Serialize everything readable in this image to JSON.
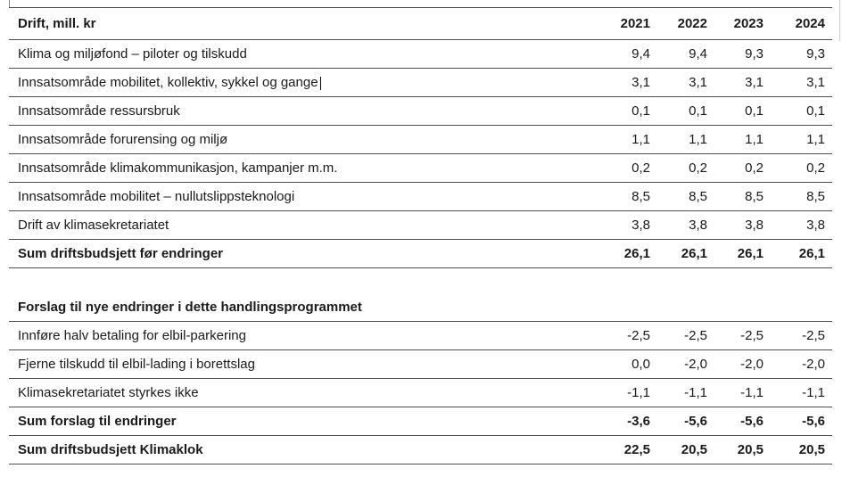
{
  "table": {
    "title": "Drift, mill. kr",
    "years": [
      "2021",
      "2022",
      "2023",
      "2024"
    ],
    "section1_rows": [
      {
        "label": "Klima og miljøfond – piloter og tilskudd",
        "values": [
          "9,4",
          "9,4",
          "9,3",
          "9,3"
        ],
        "bold": false,
        "caret": false
      },
      {
        "label": "Innsatsområde mobilitet, kollektiv, sykkel og gange",
        "values": [
          "3,1",
          "3,1",
          "3,1",
          "3,1"
        ],
        "bold": false,
        "caret": true
      },
      {
        "label": "Innsatsområde ressursbruk",
        "values": [
          "0,1",
          "0,1",
          "0,1",
          "0,1"
        ],
        "bold": false,
        "caret": false
      },
      {
        "label": "Innsatsområde forurensing og miljø",
        "values": [
          "1,1",
          "1,1",
          "1,1",
          "1,1"
        ],
        "bold": false,
        "caret": false
      },
      {
        "label": "Innsatsområde klimakommunikasjon, kampanjer m.m.",
        "values": [
          "0,2",
          "0,2",
          "0,2",
          "0,2"
        ],
        "bold": false,
        "caret": false
      },
      {
        "label": "Innsatsområde mobilitet – nullutslippsteknologi",
        "values": [
          "8,5",
          "8,5",
          "8,5",
          "8,5"
        ],
        "bold": false,
        "caret": false
      },
      {
        "label": "Drift av klimasekretariatet",
        "values": [
          "3,8",
          "3,8",
          "3,8",
          "3,8"
        ],
        "bold": false,
        "caret": false
      },
      {
        "label": "Sum driftsbudsjett før endringer",
        "values": [
          "26,1",
          "26,1",
          "26,1",
          "26,1"
        ],
        "bold": true,
        "caret": false
      }
    ],
    "section2_rows": [
      {
        "label": "Forslag til nye endringer i dette handlingsprogrammet",
        "values": [
          "",
          "",
          "",
          ""
        ],
        "bold": true,
        "caret": false
      },
      {
        "label": "Innføre halv betaling for elbil-parkering",
        "values": [
          "-2,5",
          "-2,5",
          "-2,5",
          "-2,5"
        ],
        "bold": false,
        "caret": false
      },
      {
        "label": "Fjerne tilskudd til elbil-lading i borettslag",
        "values": [
          "0,0",
          "-2,0",
          "-2,0",
          "-2,0"
        ],
        "bold": false,
        "caret": false
      },
      {
        "label": "Klimasekretariatet styrkes ikke",
        "values": [
          "-1,1",
          "-1,1",
          "-1,1",
          "-1,1"
        ],
        "bold": false,
        "caret": false
      },
      {
        "label": "Sum forslag til endringer",
        "values": [
          "-3,6",
          "-5,6",
          "-5,6",
          "-5,6"
        ],
        "bold": true,
        "caret": false
      },
      {
        "label": "Sum driftsbudsjett Klimaklok",
        "values": [
          "22,5",
          "20,5",
          "20,5",
          "20,5"
        ],
        "bold": true,
        "caret": false
      }
    ]
  },
  "colors": {
    "text": "#1a1a1a",
    "row_border": "#4d4d4d",
    "background": "#ffffff",
    "faint_gridline": "#cfcfcf"
  }
}
